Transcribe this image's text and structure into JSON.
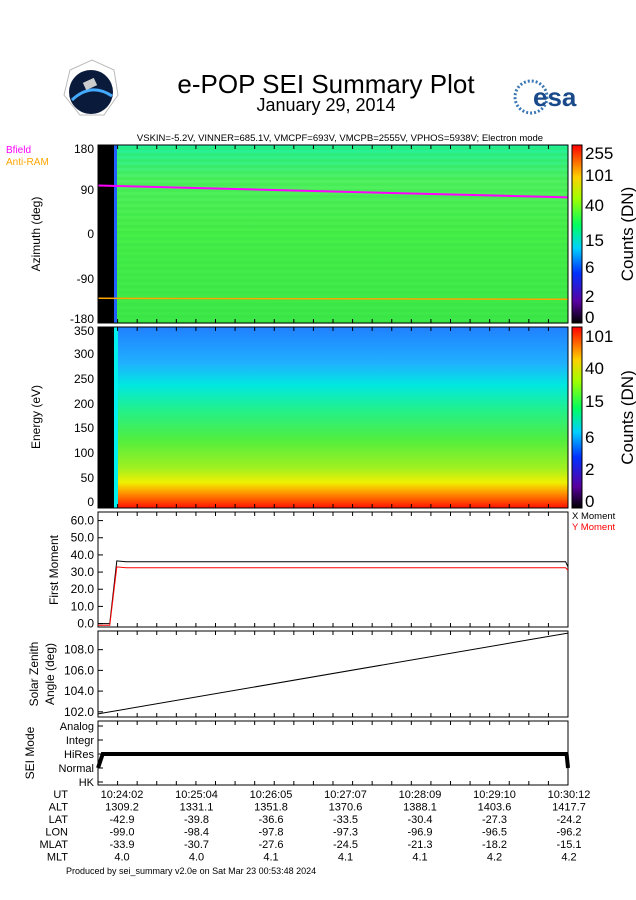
{
  "header": {
    "title": "e-POP SEI Summary Plot",
    "date": "January 29, 2014",
    "settings": "VSKIN=-5.2V, VINNER=685.1V, VMCPF=693V, VMCPB=2555V, VPHOS=5938V; Electron mode",
    "logo_left": "CASSIOPE",
    "logo_right": "esa"
  },
  "colors": {
    "bfield": "#ff00ff",
    "antiram": "#ffa500",
    "x_moment": "#000000",
    "y_moment": "#ff0000"
  },
  "chart_data": [
    {
      "type": "heatmap",
      "ylabel": "Azimuth (deg)",
      "yticks": [
        "180",
        "90",
        "0",
        "-90",
        "-180"
      ],
      "ylim": [
        -180,
        180
      ],
      "legend": [
        "Bfield",
        "Anti-RAM"
      ],
      "bfield_line": [
        98,
        74
      ],
      "antiram_line": [
        -130,
        -132
      ],
      "colorbar_label": "Counts (DN)",
      "colorbar_ticks": [
        "255",
        "101",
        "40",
        "15",
        "6",
        "2",
        "0"
      ]
    },
    {
      "type": "heatmap",
      "ylabel": "Energy (eV)",
      "yticks": [
        "350",
        "300",
        "250",
        "200",
        "150",
        "100",
        "50",
        "0"
      ],
      "ylim": [
        0,
        350
      ],
      "colorbar_label": "Counts (DN)",
      "colorbar_ticks": [
        "101",
        "40",
        "15",
        "6",
        "2",
        "0"
      ]
    },
    {
      "type": "line",
      "ylabel": "First Moment",
      "yticks": [
        "60.0",
        "50.0",
        "40.0",
        "30.0",
        "20.0",
        "10.0",
        "0.0"
      ],
      "ylim": [
        -2,
        65
      ],
      "series": [
        {
          "name": "X Moment",
          "values": [
            0,
            0,
            0,
            36.5,
            36,
            36,
            36,
            36,
            36,
            36,
            36,
            33
          ]
        },
        {
          "name": "Y Moment",
          "values": [
            -1,
            -1,
            -1,
            33,
            32.5,
            32.5,
            32.5,
            32.5,
            32.5,
            32.5,
            32.5,
            31
          ]
        }
      ],
      "x": [
        0,
        0.02,
        0.025,
        0.04,
        0.06,
        0.2,
        0.4,
        0.6,
        0.8,
        0.95,
        0.995,
        1
      ]
    },
    {
      "type": "line",
      "ylabel": "Solar Zenith Angle (deg)",
      "ylabel_lines": [
        "Solar Zenith",
        "Angle (deg)"
      ],
      "yticks": [
        "108.0",
        "106.0",
        "104.0",
        "102.0"
      ],
      "ylim": [
        101.5,
        109.8
      ],
      "series": [
        {
          "name": "SZA",
          "values": [
            101.8,
            109.6
          ]
        }
      ],
      "x": [
        0,
        1
      ]
    },
    {
      "type": "line",
      "ylabel": "SEI Mode",
      "yticks": [
        "Analog",
        "Integr",
        "HiRes",
        "Normal",
        "HK"
      ],
      "series": [
        {
          "name": "Mode",
          "values": [
            "Normal",
            "HiRes",
            "HiRes",
            "Normal"
          ]
        }
      ],
      "x": [
        0,
        0.01,
        0.997,
        1
      ]
    }
  ],
  "table": {
    "row_labels": [
      "UT",
      "ALT",
      "LAT",
      "LON",
      "MLAT",
      "MLT"
    ],
    "columns": [
      [
        "10:24:02",
        "1309.2",
        "-42.9",
        "-99.0",
        "-33.9",
        "4.0"
      ],
      [
        "10:25:04",
        "1331.1",
        "-39.8",
        "-98.4",
        "-30.7",
        "4.0"
      ],
      [
        "10:26:05",
        "1351.8",
        "-36.6",
        "-97.8",
        "-27.6",
        "4.1"
      ],
      [
        "10:27:07",
        "1370.6",
        "-33.5",
        "-97.3",
        "-24.5",
        "4.1"
      ],
      [
        "10:28:09",
        "1388.1",
        "-30.4",
        "-96.9",
        "-21.3",
        "4.1"
      ],
      [
        "10:29:10",
        "1403.6",
        "-27.3",
        "-96.5",
        "-18.2",
        "4.2"
      ],
      [
        "10:30:12",
        "1417.7",
        "-24.2",
        "-96.2",
        "-15.1",
        "4.2"
      ]
    ]
  },
  "footer": "Produced by sei_summary v2.0e on Sat Mar 23 00:53:48 2024"
}
